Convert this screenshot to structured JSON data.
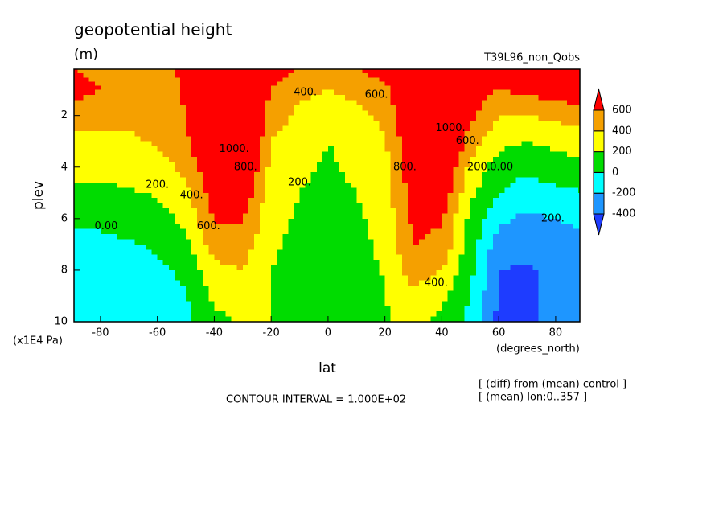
{
  "chart_data": {
    "type": "contour",
    "title": "geopotential height",
    "subtitle": "(m)",
    "run_label": "T39L96_non_Qobs",
    "x_label": "lat",
    "y_label": "plev",
    "y_unit": "(x1E4 Pa)",
    "x_unit": "(degrees_north)",
    "contour_interval": "CONTOUR INTERVAL = 1.000E+02",
    "notes": [
      "[ (diff) from (mean) control ]",
      "[ (mean) lon:0..357 ]"
    ],
    "xlim": [
      -89.3,
      88.5
    ],
    "ylim": [
      10,
      0.2
    ],
    "xticks": [
      -80,
      -60,
      -40,
      -20,
      0,
      20,
      40,
      60,
      80
    ],
    "yticks": [
      2,
      4,
      6,
      8,
      10
    ],
    "x": [
      -90,
      -80,
      -70,
      -60,
      -50,
      -40,
      -30,
      -20,
      -10,
      0,
      10,
      20,
      30,
      40,
      50,
      60,
      70,
      80,
      90
    ],
    "y": [
      0.2,
      1,
      2,
      3,
      4,
      5,
      6,
      7,
      8,
      9,
      10
    ],
    "z": [
      [
        600,
        500,
        450,
        500,
        650,
        800,
        900,
        700,
        600,
        550,
        600,
        700,
        900,
        900,
        800,
        800,
        900,
        1000,
        1100
      ],
      [
        700,
        600,
        450,
        450,
        650,
        900,
        1000,
        600,
        450,
        400,
        450,
        550,
        900,
        1000,
        700,
        600,
        650,
        700,
        800
      ],
      [
        500,
        450,
        420,
        450,
        600,
        1000,
        1000,
        500,
        350,
        300,
        330,
        450,
        850,
        1100,
        650,
        400,
        400,
        450,
        500
      ],
      [
        300,
        350,
        380,
        420,
        550,
        900,
        1000,
        400,
        300,
        200,
        280,
        380,
        800,
        1000,
        500,
        250,
        200,
        250,
        300
      ],
      [
        250,
        250,
        280,
        320,
        450,
        800,
        900,
        350,
        250,
        170,
        240,
        330,
        750,
        850,
        350,
        100,
        50,
        100,
        150
      ],
      [
        150,
        150,
        180,
        220,
        350,
        700,
        750,
        300,
        200,
        150,
        200,
        300,
        700,
        750,
        250,
        0,
        -100,
        -50,
        0
      ],
      [
        50,
        50,
        80,
        120,
        250,
        620,
        620,
        250,
        180,
        120,
        170,
        270,
        650,
        620,
        150,
        -150,
        -250,
        -200,
        -150
      ],
      [
        -100,
        -50,
        -20,
        30,
        150,
        500,
        500,
        230,
        150,
        100,
        150,
        240,
        600,
        550,
        100,
        -300,
        -350,
        -300,
        -250
      ],
      [
        -150,
        -150,
        -120,
        -50,
        50,
        350,
        400,
        200,
        140,
        80,
        140,
        210,
        500,
        400,
        50,
        -400,
        -420,
        -350,
        -300
      ],
      [
        -150,
        -180,
        -160,
        -100,
        -20,
        250,
        300,
        200,
        140,
        80,
        140,
        190,
        350,
        250,
        0,
        -420,
        -450,
        -350,
        -300
      ],
      [
        -150,
        -180,
        -170,
        -130,
        -60,
        150,
        220,
        200,
        140,
        80,
        140,
        180,
        250,
        150,
        -50,
        -450,
        -450,
        -350,
        -300
      ]
    ],
    "levels": [
      -400,
      -200,
      0,
      200,
      400,
      600
    ],
    "colors": [
      "#1e3cff",
      "#1e96ff",
      "#00ffff",
      "#00dc00",
      "#ffff00",
      "#f5a000",
      "#ff0000"
    ],
    "contour_labels": [
      {
        "label": "1000.",
        "lat": -33,
        "plev": 3.3
      },
      {
        "label": "800.",
        "lat": -29,
        "plev": 4
      },
      {
        "label": "600.",
        "lat": -42,
        "plev": 6.3
      },
      {
        "label": "400.",
        "lat": -48,
        "plev": 5.1
      },
      {
        "label": "200.",
        "lat": -60,
        "plev": 4.7
      },
      {
        "label": "0.00",
        "lat": -78,
        "plev": 6.3
      },
      {
        "label": "200.",
        "lat": -10,
        "plev": 4.6
      },
      {
        "label": "400.",
        "lat": -8,
        "plev": 1.1
      },
      {
        "label": "600.",
        "lat": 17,
        "plev": 1.2
      },
      {
        "label": "800.",
        "lat": 27,
        "plev": 4
      },
      {
        "label": "1000.",
        "lat": 43,
        "plev": 2.5
      },
      {
        "label": "600.",
        "lat": 49,
        "plev": 3
      },
      {
        "label": "400.",
        "lat": 38,
        "plev": 8.5
      },
      {
        "label": "200.",
        "lat": 53,
        "plev": 4
      },
      {
        "label": "0.00",
        "lat": 61,
        "plev": 4
      },
      {
        "label": "200.",
        "lat": 79,
        "plev": 6
      }
    ]
  }
}
